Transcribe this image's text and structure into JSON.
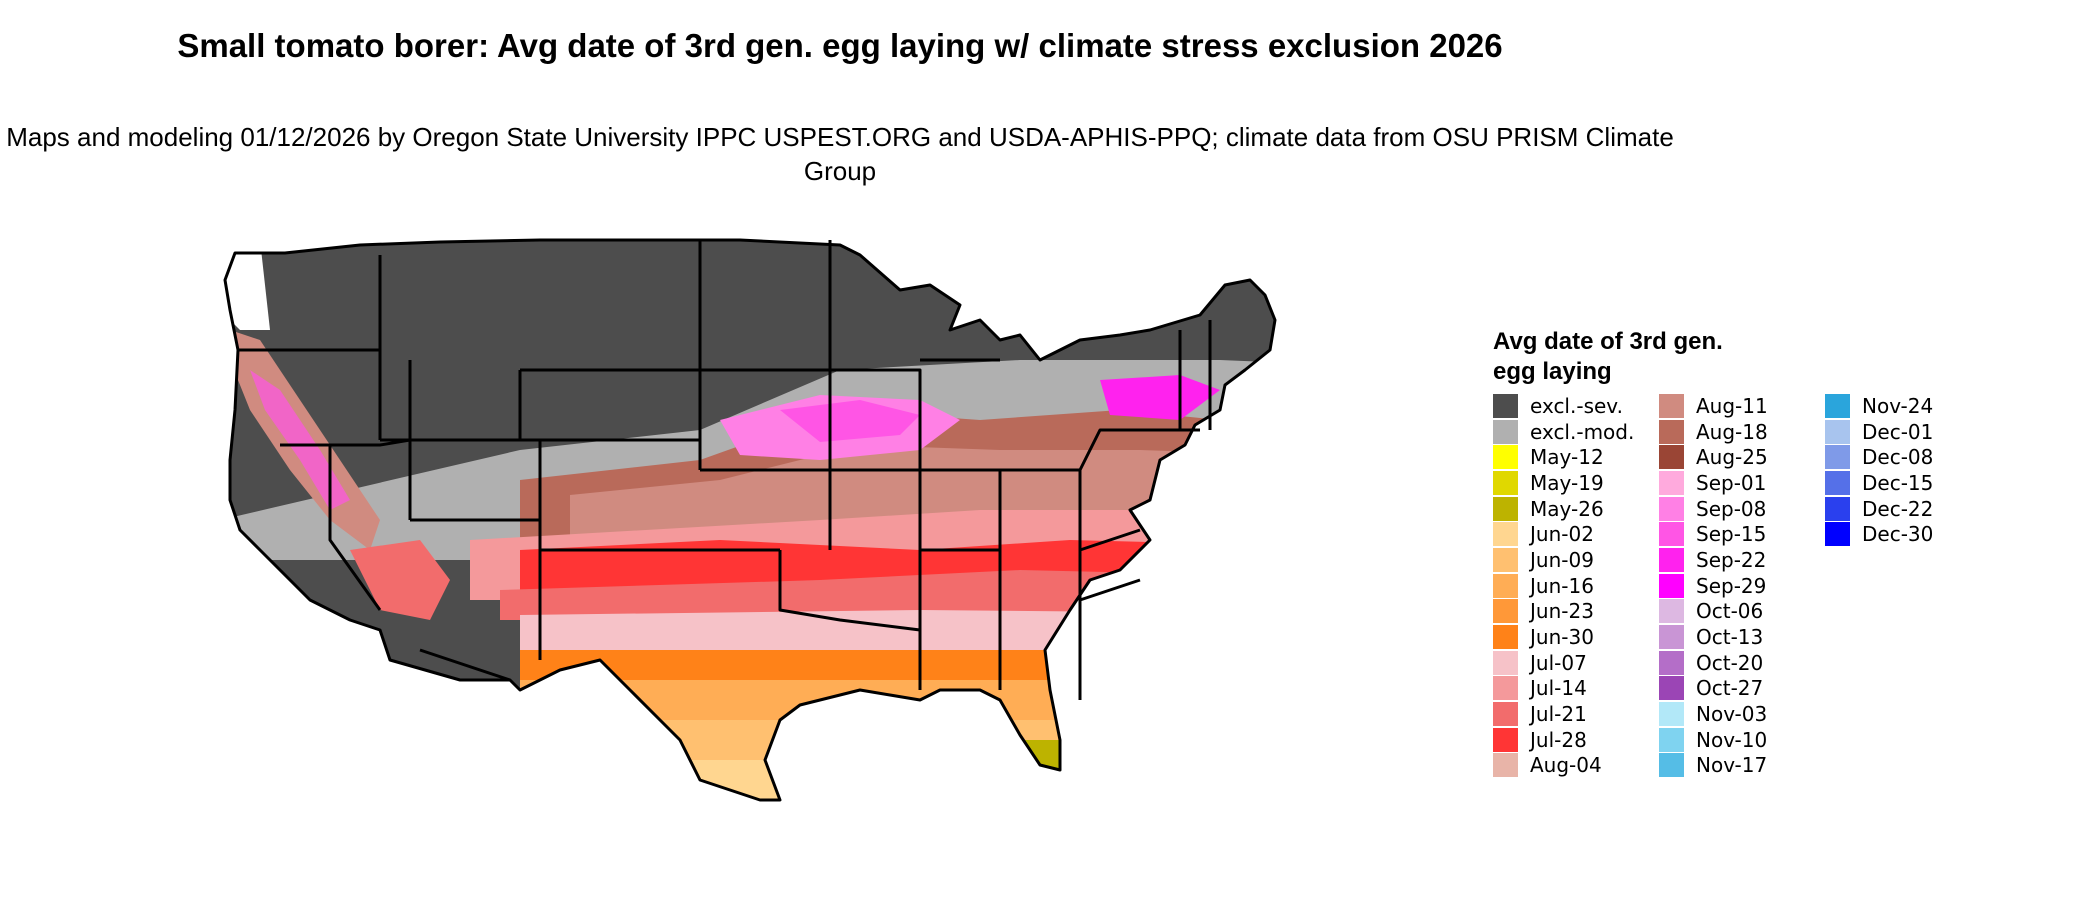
{
  "title": {
    "main": "Small tomato borer: Avg date of 3rd gen. egg laying w/ climate stress exclusion 2026",
    "subtitle": "Maps and modeling 01/12/2026 by Oregon State University IPPC USPEST.ORG and USDA-APHIS-PPQ; climate data from OSU PRISM Climate Group"
  },
  "legend": {
    "title": "Avg date of 3rd gen. egg laying",
    "columns": [
      [
        {
          "label": "excl.-sev.",
          "color": "#4d4d4d"
        },
        {
          "label": "excl.-mod.",
          "color": "#b0b0b0"
        },
        {
          "label": "May-12",
          "color": "#ffff00"
        },
        {
          "label": "May-19",
          "color": "#e0d800"
        },
        {
          "label": "May-26",
          "color": "#bdb300"
        },
        {
          "label": "Jun-02",
          "color": "#ffd690"
        },
        {
          "label": "Jun-09",
          "color": "#ffc070"
        },
        {
          "label": "Jun-16",
          "color": "#ffad55"
        },
        {
          "label": "Jun-23",
          "color": "#ff9838"
        },
        {
          "label": "Jun-30",
          "color": "#ff8218"
        },
        {
          "label": "Jul-07",
          "color": "#f6c2c8"
        },
        {
          "label": "Jul-14",
          "color": "#f4999b"
        },
        {
          "label": "Jul-21",
          "color": "#f26c6c"
        },
        {
          "label": "Jul-28",
          "color": "#ff3535"
        },
        {
          "label": "Aug-04",
          "color": "#e8b4a8"
        }
      ],
      [
        {
          "label": "Aug-11",
          "color": "#d08b80"
        },
        {
          "label": "Aug-18",
          "color": "#b96a5a"
        },
        {
          "label": "Aug-25",
          "color": "#9a4535"
        },
        {
          "label": "Sep-01",
          "color": "#ffaadd"
        },
        {
          "label": "Sep-08",
          "color": "#ff80e5"
        },
        {
          "label": "Sep-15",
          "color": "#ff55e5"
        },
        {
          "label": "Sep-22",
          "color": "#ff22ee"
        },
        {
          "label": "Sep-29",
          "color": "#ff00ff"
        },
        {
          "label": "Oct-06",
          "color": "#ddb8e2"
        },
        {
          "label": "Oct-13",
          "color": "#c995d5"
        },
        {
          "label": "Oct-20",
          "color": "#b46ec8"
        },
        {
          "label": "Oct-27",
          "color": "#9b45b5"
        },
        {
          "label": "Nov-03",
          "color": "#b2e8f8"
        },
        {
          "label": "Nov-10",
          "color": "#7fd3f0"
        },
        {
          "label": "Nov-17",
          "color": "#55bde6"
        }
      ],
      [
        {
          "label": "Nov-24",
          "color": "#2aa5dc"
        },
        {
          "label": "Dec-01",
          "color": "#a8c4ee"
        },
        {
          "label": "Dec-08",
          "color": "#7f9ae8"
        },
        {
          "label": "Dec-15",
          "color": "#5570e8"
        },
        {
          "label": "Dec-22",
          "color": "#2a40ee"
        },
        {
          "label": "Dec-30",
          "color": "#0000ff"
        }
      ]
    ]
  }
}
